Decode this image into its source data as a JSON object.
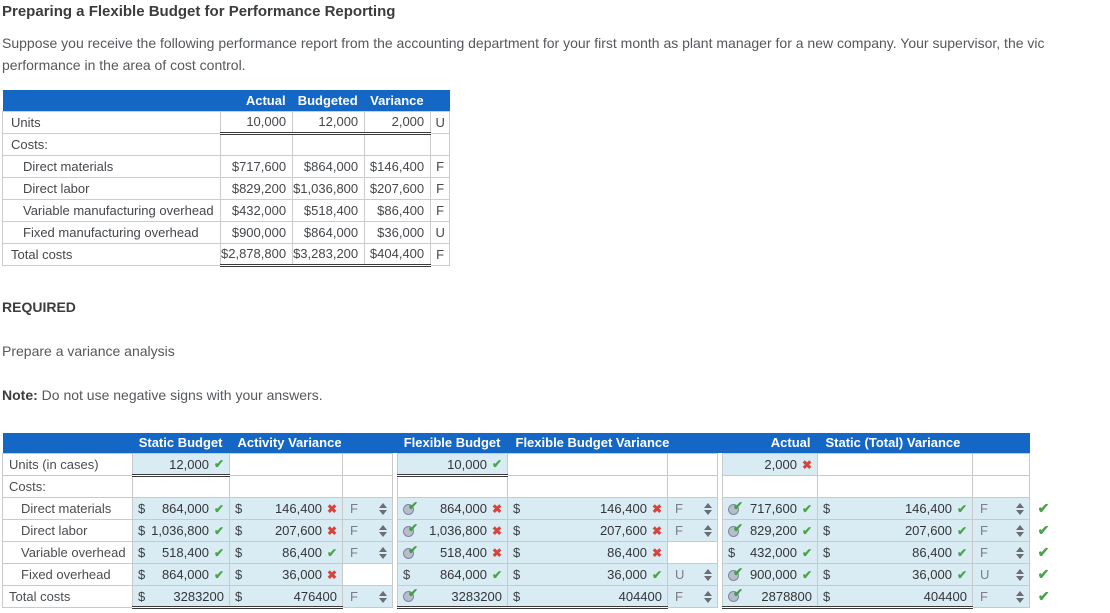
{
  "title": "Preparing a Flexible Budget for Performance Reporting",
  "intro_line1": "Suppose you receive the following performance report from the accounting department for your first month as plant manager for a new company. Your supervisor, the vic",
  "intro_line2": "performance in the area of cost control.",
  "required": {
    "heading": "REQUIRED",
    "task": "Prepare a variance analysis",
    "note_label": "Note:",
    "note_text": "Do not use negative signs with your answers."
  },
  "marks": {
    "correct": "✔",
    "wrong": "✖"
  },
  "performance_report": {
    "columns": [
      "Actual",
      "Budgeted",
      "Variance"
    ],
    "rows": [
      {
        "label": "Units",
        "indent": false,
        "style": "units",
        "values": [
          "10,000",
          "12,000",
          "2,000"
        ],
        "fu": "U"
      },
      {
        "label": "Costs:",
        "indent": false,
        "style": "section",
        "values": [
          "",
          "",
          ""
        ],
        "fu": ""
      },
      {
        "label": "Direct materials",
        "indent": true,
        "style": "cost",
        "values": [
          "$717,600",
          "$864,000",
          "$146,400"
        ],
        "fu": "F"
      },
      {
        "label": "Direct labor",
        "indent": true,
        "style": "cost",
        "values": [
          "$829,200",
          "$1,036,800",
          "$207,600"
        ],
        "fu": "F"
      },
      {
        "label": "Variable manufacturing overhead",
        "indent": true,
        "style": "cost",
        "values": [
          "$432,000",
          "$518,400",
          "$86,400"
        ],
        "fu": "F"
      },
      {
        "label": "Fixed manufacturing overhead",
        "indent": true,
        "style": "cost",
        "values": [
          "$900,000",
          "$864,000",
          "$36,000"
        ],
        "fu": "U"
      },
      {
        "label": "Total costs",
        "indent": false,
        "style": "total",
        "values": [
          "$2,878,800",
          "$3,283,200",
          "$404,400"
        ],
        "fu": "F"
      }
    ]
  },
  "variance_analysis": {
    "columns": [
      "Static Budget",
      "Activity Variance",
      "Flexible Budget",
      "Flexible Budget Variance",
      "Actual",
      "Static (Total) Variance"
    ],
    "rows": [
      {
        "label": "Units (in cases)",
        "indent": false,
        "style": "units",
        "row_check": false,
        "cells": {
          "sb": {
            "type": "value",
            "prefix": "",
            "num": "12,000",
            "mark": "correct",
            "underline": true
          },
          "av": null,
          "fu1": null,
          "fb": {
            "type": "value",
            "prefix": "",
            "num": "10,000",
            "mark": "correct",
            "underline": true
          },
          "fbv": null,
          "fu2": null,
          "act": {
            "type": "value",
            "prefix": "",
            "num": "2,000",
            "mark": "wrong"
          },
          "stv": null,
          "fu3": null
        }
      },
      {
        "label": "Costs:",
        "indent": false,
        "style": "section",
        "row_check": false,
        "cells": {
          "sb": null,
          "av": null,
          "fu1": null,
          "fb": null,
          "fbv": null,
          "fu2": null,
          "act": null,
          "stv": null,
          "fu3": null
        }
      },
      {
        "label": "Direct materials",
        "indent": true,
        "style": "cost",
        "row_check": true,
        "cells": {
          "sb": {
            "type": "value",
            "prefix": "$",
            "num": "864,000",
            "mark": "correct"
          },
          "av": {
            "type": "value",
            "prefix": "$",
            "num": "146,400",
            "mark": "wrong"
          },
          "fu1": {
            "type": "dropdown",
            "value": "F"
          },
          "fb": {
            "type": "value",
            "prefix": "badge",
            "num": "864,000",
            "mark": "wrong"
          },
          "fbv": {
            "type": "value",
            "prefix": "$",
            "num": "146,400",
            "mark": "wrong"
          },
          "fu2": {
            "type": "dropdown",
            "value": "F"
          },
          "act": {
            "type": "value",
            "prefix": "badge",
            "num": "717,600",
            "mark": "correct"
          },
          "stv": {
            "type": "value",
            "prefix": "$",
            "num": "146,400",
            "mark": "correct"
          },
          "fu3": {
            "type": "dropdown",
            "value": "F"
          }
        }
      },
      {
        "label": "Direct labor",
        "indent": true,
        "style": "cost",
        "row_check": true,
        "cells": {
          "sb": {
            "type": "value",
            "prefix": "$",
            "num": "1,036,800",
            "mark": "correct"
          },
          "av": {
            "type": "value",
            "prefix": "$",
            "num": "207,600",
            "mark": "wrong"
          },
          "fu1": {
            "type": "dropdown",
            "value": "F"
          },
          "fb": {
            "type": "value",
            "prefix": "badge",
            "num": "1,036,800",
            "mark": "wrong"
          },
          "fbv": {
            "type": "value",
            "prefix": "$",
            "num": "207,600",
            "mark": "wrong"
          },
          "fu2": {
            "type": "dropdown",
            "value": "F"
          },
          "act": {
            "type": "value",
            "prefix": "badge",
            "num": "829,200",
            "mark": "correct"
          },
          "stv": {
            "type": "value",
            "prefix": "$",
            "num": "207,600",
            "mark": "correct"
          },
          "fu3": {
            "type": "dropdown",
            "value": "F"
          }
        }
      },
      {
        "label": "Variable overhead",
        "indent": true,
        "style": "cost",
        "row_check": true,
        "cells": {
          "sb": {
            "type": "value",
            "prefix": "$",
            "num": "518,400",
            "mark": "correct"
          },
          "av": {
            "type": "value",
            "prefix": "$",
            "num": "86,400",
            "mark": "correct"
          },
          "fu1": {
            "type": "dropdown",
            "value": "F"
          },
          "fb": {
            "type": "value",
            "prefix": "badge",
            "num": "518,400",
            "mark": "wrong"
          },
          "fbv": {
            "type": "value",
            "prefix": "$",
            "num": "86,400",
            "mark": "wrong"
          },
          "fu2": null,
          "act": {
            "type": "value",
            "prefix": "$",
            "num": "432,000",
            "mark": "correct"
          },
          "stv": {
            "type": "value",
            "prefix": "$",
            "num": "86,400",
            "mark": "correct"
          },
          "fu3": {
            "type": "dropdown",
            "value": "F"
          }
        }
      },
      {
        "label": "Fixed overhead",
        "indent": true,
        "style": "cost",
        "row_check": true,
        "cells": {
          "sb": {
            "type": "value",
            "prefix": "$",
            "num": "864,000",
            "mark": "correct"
          },
          "av": {
            "type": "value",
            "prefix": "$",
            "num": "36,000",
            "mark": "wrong"
          },
          "fu1": null,
          "fb": {
            "type": "value",
            "prefix": "$",
            "num": "864,000",
            "mark": "correct"
          },
          "fbv": {
            "type": "value",
            "prefix": "$",
            "num": "36,000",
            "mark": "correct"
          },
          "fu2": {
            "type": "dropdown",
            "value": "U"
          },
          "act": {
            "type": "value",
            "prefix": "badge",
            "num": "900,000",
            "mark": "correct"
          },
          "stv": {
            "type": "value",
            "prefix": "$",
            "num": "36,000",
            "mark": "correct"
          },
          "fu3": {
            "type": "dropdown",
            "value": "U"
          }
        }
      },
      {
        "label": "Total costs",
        "indent": false,
        "style": "total",
        "row_check": true,
        "cells": {
          "sb": {
            "type": "value",
            "prefix": "$",
            "num": "3283200",
            "mark": null
          },
          "av": {
            "type": "value",
            "prefix": "$",
            "num": "476400",
            "mark": null
          },
          "fu1": {
            "type": "dropdown",
            "value": "F"
          },
          "fb": {
            "type": "value",
            "prefix": "badge",
            "num": "3283200",
            "mark": null
          },
          "fbv": {
            "type": "value",
            "prefix": "$",
            "num": "404400",
            "mark": null
          },
          "fu2": {
            "type": "dropdown",
            "value": "F"
          },
          "act": {
            "type": "value",
            "prefix": "badge",
            "num": "2878800",
            "mark": null
          },
          "stv": {
            "type": "value",
            "prefix": "$",
            "num": "404400",
            "mark": null
          },
          "fu3": {
            "type": "dropdown",
            "value": "F"
          }
        }
      }
    ]
  }
}
